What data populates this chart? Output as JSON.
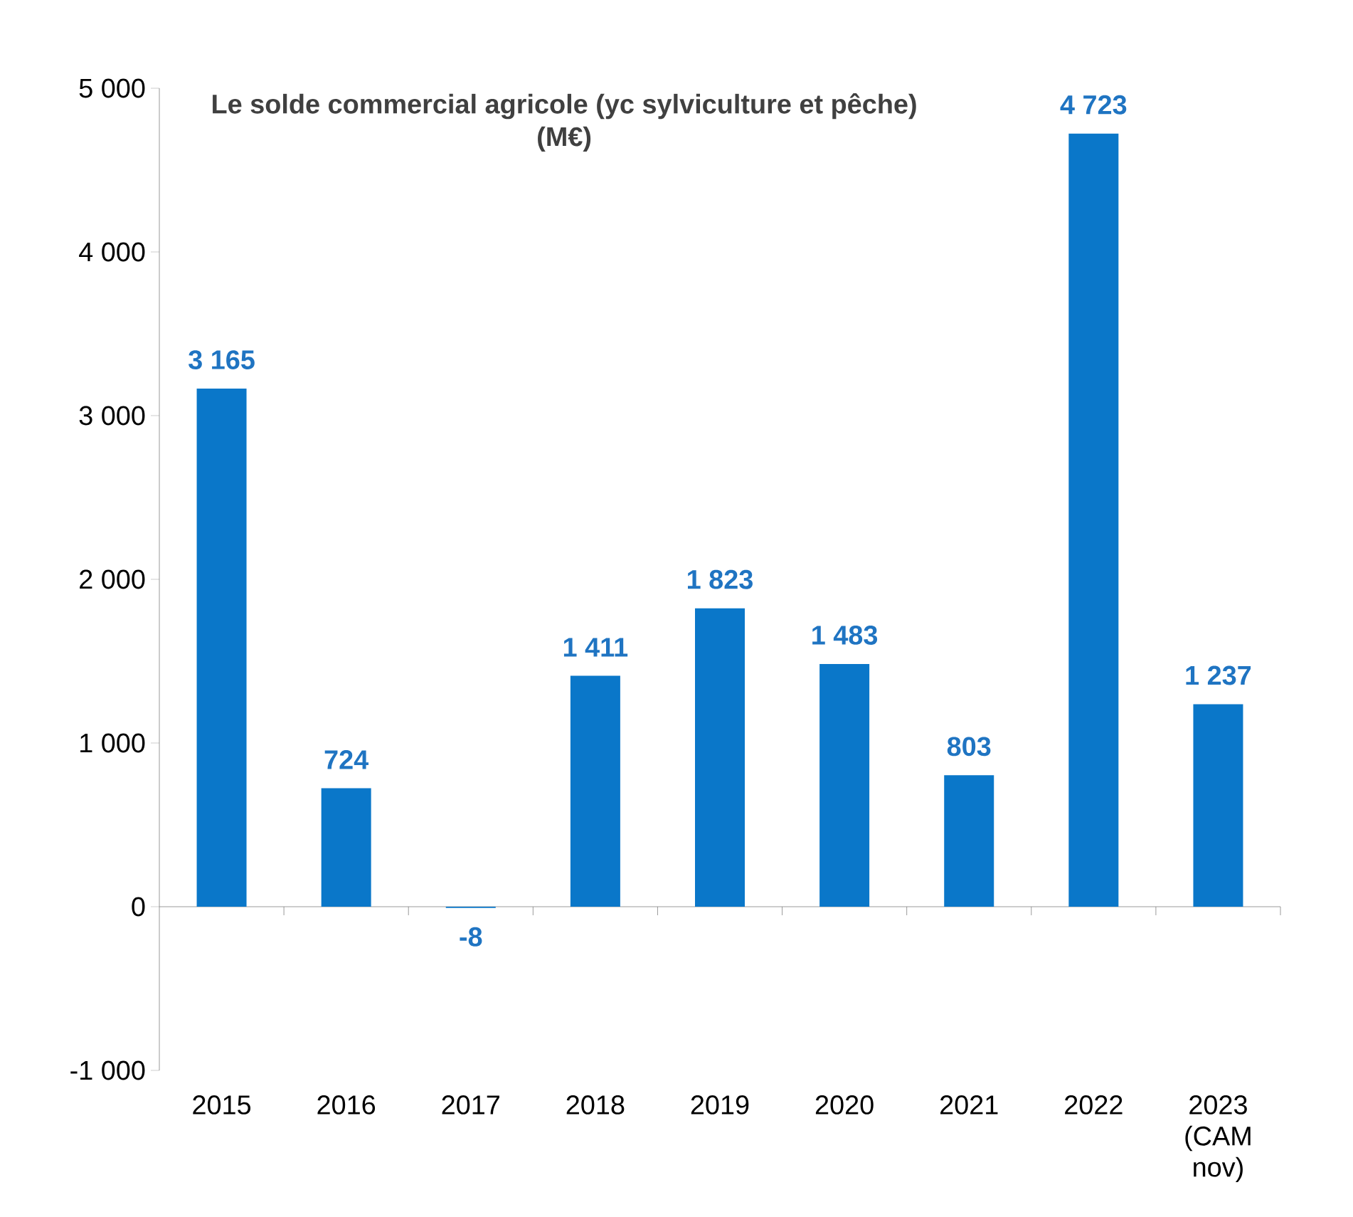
{
  "chart_data": {
    "type": "bar",
    "title": "Le solde commercial agricole (yc sylviculture et pêche)",
    "subtitle": "(M€)",
    "categories": [
      "2015",
      "2016",
      "2017",
      "2018",
      "2019",
      "2020",
      "2021",
      "2022",
      "2023 (CAM nov)"
    ],
    "values": [
      3165,
      724,
      -8,
      1411,
      1823,
      1483,
      803,
      4723,
      1237
    ],
    "value_labels": [
      "3 165",
      "724",
      "-8",
      "1 411",
      "1 823",
      "1 483",
      "803",
      "4 723",
      "1 237"
    ],
    "color": "#0a77c9",
    "ylim": [
      -1000,
      5000
    ],
    "yticks": [
      {
        "value": -1000,
        "label": "-1 000"
      },
      {
        "value": 0,
        "label": "0"
      },
      {
        "value": 1000,
        "label": "1 000"
      },
      {
        "value": 2000,
        "label": "2 000"
      },
      {
        "value": 3000,
        "label": "3 000"
      },
      {
        "value": 4000,
        "label": "4 000"
      },
      {
        "value": 5000,
        "label": "5 000"
      }
    ],
    "tick_labels": true
  }
}
